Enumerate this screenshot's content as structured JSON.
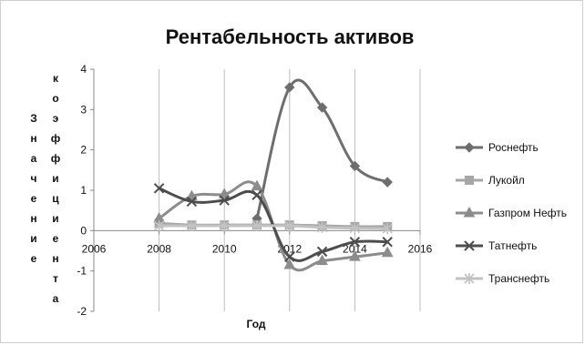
{
  "chart_data": {
    "type": "scatter",
    "title": "Рентабельность активов",
    "xlabel": "Год",
    "ylabel": "Значение коэффициента",
    "ylabel_lines": [
      "Значение",
      "коэффициента"
    ],
    "xlim": [
      2006,
      2016
    ],
    "ylim": [
      -2,
      4
    ],
    "x_ticks": [
      2006,
      2008,
      2010,
      2012,
      2014,
      2016
    ],
    "y_ticks": [
      -2,
      -1,
      0,
      1,
      2,
      3,
      4
    ],
    "grid": "vertical",
    "legend_position": "right",
    "series": [
      {
        "name": "Роснефть",
        "color": "#6e6e6e",
        "marker": "diamond",
        "x": [
          2011,
          2012,
          2013,
          2014,
          2015
        ],
        "y": [
          0.3,
          3.55,
          3.05,
          1.6,
          1.2
        ]
      },
      {
        "name": "Лукойл",
        "color": "#a6a6a6",
        "marker": "square",
        "x": [
          2008,
          2009,
          2010,
          2011,
          2012,
          2013,
          2014,
          2015
        ],
        "y": [
          0.18,
          0.14,
          0.14,
          0.14,
          0.14,
          0.12,
          0.1,
          0.1
        ]
      },
      {
        "name": "Газпром Нефть",
        "color": "#8c8c8c",
        "marker": "triangle",
        "x": [
          2008,
          2009,
          2010,
          2011,
          2012,
          2013,
          2014,
          2015
        ],
        "y": [
          0.3,
          0.85,
          0.9,
          1.1,
          -0.85,
          -0.75,
          -0.65,
          -0.55
        ]
      },
      {
        "name": "Татнефть",
        "color": "#4d4d4d",
        "marker": "x",
        "x": [
          2008,
          2009,
          2010,
          2011,
          2012,
          2013,
          2014,
          2015
        ],
        "y": [
          1.05,
          0.72,
          0.75,
          0.88,
          -0.65,
          -0.52,
          -0.28,
          -0.28
        ]
      },
      {
        "name": "Транснефть",
        "color": "#c2c2c2",
        "marker": "star",
        "x": [
          2008,
          2009,
          2010,
          2011,
          2012,
          2013,
          2014,
          2015
        ],
        "y": [
          0.12,
          0.12,
          0.12,
          0.12,
          0.12,
          0.08,
          0.06,
          0.05
        ]
      }
    ]
  }
}
